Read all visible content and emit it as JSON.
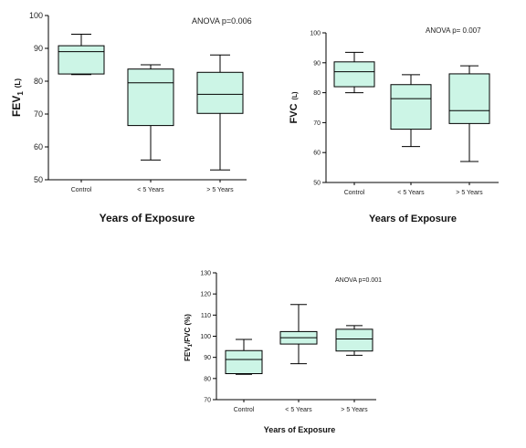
{
  "chart_data": [
    {
      "type": "box",
      "categories": [
        "Control",
        "< 5 Years",
        "> 5 Years"
      ],
      "boxes": [
        {
          "min": 82,
          "q1": 82.2,
          "median": 89,
          "q3": 90.8,
          "max": 94.3
        },
        {
          "min": 56,
          "q1": 66.5,
          "median": 79.5,
          "q3": 83.7,
          "max": 85
        },
        {
          "min": 53,
          "q1": 70.2,
          "median": 76,
          "q3": 82.7,
          "max": 88
        }
      ],
      "ylabel_main": "FEV",
      "ylabel_sub": "1",
      "ylabel_unit": "(L)",
      "xlabel": "Years of Exposure",
      "annotation": "ANOVA p=0.006",
      "ylim": [
        50,
        100
      ],
      "yticks": [
        50,
        60,
        70,
        80,
        90,
        100
      ],
      "ytick_labels": [
        "50",
        "60",
        "70",
        "80",
        "90",
        "100"
      ],
      "box_color": "#ccf5e6"
    },
    {
      "type": "box",
      "categories": [
        "Control",
        "< 5 Years",
        "> 5 Years"
      ],
      "boxes": [
        {
          "min": 80,
          "q1": 82,
          "median": 87,
          "q3": 90.3,
          "max": 93.5
        },
        {
          "min": 62,
          "q1": 67.8,
          "median": 78,
          "q3": 82.7,
          "max": 86
        },
        {
          "min": 57,
          "q1": 69.7,
          "median": 74,
          "q3": 86.3,
          "max": 89
        }
      ],
      "ylabel_main": "FVC",
      "ylabel_sub": "",
      "ylabel_unit": "(L)",
      "xlabel": "Years of Exposure",
      "annotation": "ANOVA p= 0.007",
      "ylim": [
        50,
        100
      ],
      "yticks": [
        50,
        60,
        70,
        80,
        90,
        100
      ],
      "ytick_labels": [
        "50",
        "60",
        "70",
        "80",
        "90",
        "100"
      ],
      "box_color": "#ccf5e6"
    },
    {
      "type": "box",
      "categories": [
        "Control",
        "< 5 Years",
        "> 5 Years"
      ],
      "boxes": [
        {
          "min": 82,
          "q1": 82.3,
          "median": 89,
          "q3": 93.2,
          "max": 98.5
        },
        {
          "min": 87,
          "q1": 96.3,
          "median": 99.3,
          "q3": 102.2,
          "max": 115
        },
        {
          "min": 91,
          "q1": 93,
          "median": 98.7,
          "q3": 103.3,
          "max": 105
        }
      ],
      "ylabel_main": "FEV",
      "ylabel_sub": "1",
      "ylabel_unit": "/FVC (%)",
      "xlabel": "Years of Exposure",
      "annotation": "ANOVA p=0.001",
      "ylim": [
        70,
        130
      ],
      "yticks": [
        70,
        80,
        90,
        100,
        110,
        120,
        130
      ],
      "ytick_labels": [
        "70",
        "80",
        "90",
        "100",
        "110",
        "120",
        "130"
      ],
      "box_color": "#ccf5e6"
    }
  ]
}
